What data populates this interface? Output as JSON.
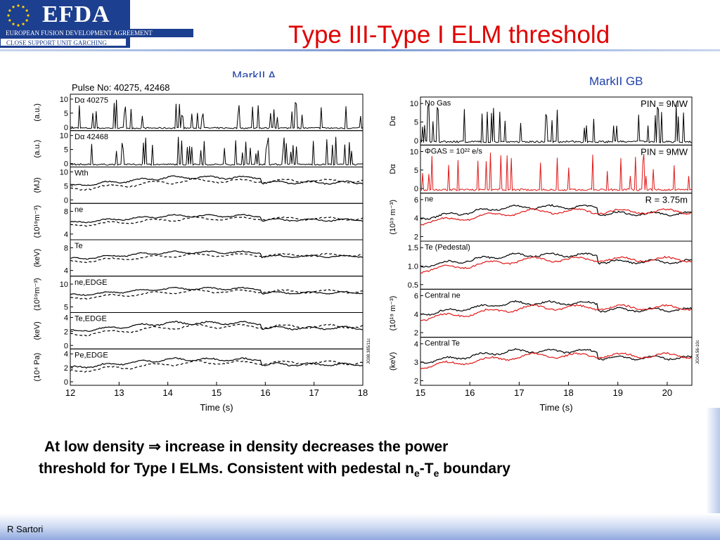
{
  "header": {
    "logo": "EFDA",
    "agreement": "EUROPEAN FUSION DEVELOPMENT AGREEMENT",
    "unit": "CLOSE SUPPORT UNIT GARCHING"
  },
  "slide_title": "Type III-Type I ELM threshold",
  "caption": {
    "line1_before": "At low density ",
    "arrow": "⇒",
    "line1_after": " increase in density decreases the power",
    "line2_before": "threshold for Type I ELMs. Consistent with pedestal n",
    "sub_e1": "e",
    "dash": "-T",
    "sub_e2": "e",
    "line2_after": " boundary"
  },
  "author": "R Sartori",
  "colors": {
    "title": "#e00000",
    "label": "#1d3fa8",
    "band": "#1d3f8f",
    "red_trace": "#e01818",
    "black_trace": "#000000"
  },
  "chart_data": [
    {
      "type": "line",
      "title": "MarkII A",
      "subtitle": "Pulse No: 40275, 42468",
      "xlabel": "Time (s)",
      "xticks": [
        "12",
        "13",
        "14",
        "15",
        "16",
        "17",
        "18"
      ],
      "xlim": [
        12,
        18
      ],
      "code": "JG98.385/11c",
      "panels": [
        {
          "label": "Dα 40275",
          "ylabel": "(a.u.)",
          "yticks": [
            "0",
            "5",
            "10"
          ]
        },
        {
          "label": "Dα 42468",
          "ylabel": "(a.u.)",
          "yticks": [
            "0",
            "5",
            "10"
          ]
        },
        {
          "label": "Wth",
          "ylabel": "(MJ)",
          "yticks": [
            "0",
            "5",
            "10"
          ]
        },
        {
          "label": "ne",
          "ylabel": "(10¹⁹m⁻³)",
          "yticks": [
            "4",
            "8"
          ]
        },
        {
          "label": "Te",
          "ylabel": "(keV)",
          "yticks": [
            "4",
            "8"
          ]
        },
        {
          "label": "ne,EDGE",
          "ylabel": "(10¹⁹m⁻³)",
          "yticks": [
            "5",
            "10"
          ]
        },
        {
          "label": "Te,EDGE",
          "ylabel": "(keV)",
          "yticks": [
            "0",
            "2",
            "4"
          ]
        },
        {
          "label": "Pe,EDGE",
          "ylabel": "(10⁴ Pa)",
          "yticks": [
            "0",
            "2",
            "4"
          ]
        }
      ]
    },
    {
      "type": "line",
      "title": "MarkII GB",
      "xlabel": "Time (s)",
      "xticks": [
        "15",
        "16",
        "17",
        "18",
        "19",
        "20"
      ],
      "xlim": [
        15,
        20.5
      ],
      "code": "JG04.56-10c",
      "panels": [
        {
          "label": "No Gas",
          "ylabel": "Dα",
          "right_label": "PIN = 9MW",
          "yticks": [
            "0",
            "5",
            "10"
          ]
        },
        {
          "label": "ΦGAS = 10²² e/s",
          "ylabel": "Dα",
          "right_label": "PIN = 9MW",
          "yticks": [
            "0",
            "5",
            "10"
          ]
        },
        {
          "label": "ne",
          "ylabel": "(10¹⁹ m⁻³)",
          "right_label": "R = 3.75m",
          "yticks": [
            "2",
            "4",
            "6"
          ]
        },
        {
          "label": "Te (Pedestal)",
          "ylabel": "",
          "yticks": [
            "0.5",
            "1.0",
            "1.5"
          ]
        },
        {
          "label": "Central ne",
          "ylabel": "(10¹⁹ m⁻³)",
          "yticks": [
            "2",
            "4",
            "6"
          ]
        },
        {
          "label": "Central Te",
          "ylabel": "(keV)",
          "yticks": [
            "2",
            "3",
            "4"
          ]
        }
      ]
    }
  ]
}
